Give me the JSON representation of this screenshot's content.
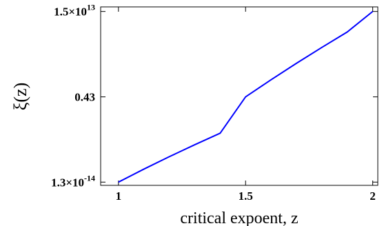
{
  "chart_data": {
    "type": "line",
    "title": "",
    "xlabel": "critical expoent, z",
    "ylabel": "ξ(z)",
    "x_scale": "linear",
    "y_scale": "log",
    "xlim": [
      0.93,
      2.02
    ],
    "ylim": [
      4e-15,
      80000000000000.0
    ],
    "x_ticks": [
      {
        "value": 1,
        "label": "1"
      },
      {
        "value": 1.5,
        "label": "1.5"
      },
      {
        "value": 2,
        "label": "2"
      }
    ],
    "y_ticks": [
      {
        "value": 1.3e-14,
        "mantissa": "1.3",
        "exponent": "-14"
      },
      {
        "value": 0.43,
        "label": "0.43"
      },
      {
        "value": 15000000000000.0,
        "mantissa": "1.5",
        "exponent": "13"
      }
    ],
    "grid": false,
    "series": [
      {
        "color": "#0000ff",
        "x": [
          1.0,
          1.1,
          1.2,
          1.3,
          1.4,
          1.5,
          1.6,
          1.7,
          1.8,
          1.9,
          2.0
        ],
        "y": [
          1.3e-14,
          1.5e-12,
          1.4e-10,
          1.1e-08,
          7.5e-07,
          0.43,
          220.0,
          90000.0,
          30000000.0,
          8500000000.0,
          15000000000000.0
        ]
      }
    ]
  }
}
